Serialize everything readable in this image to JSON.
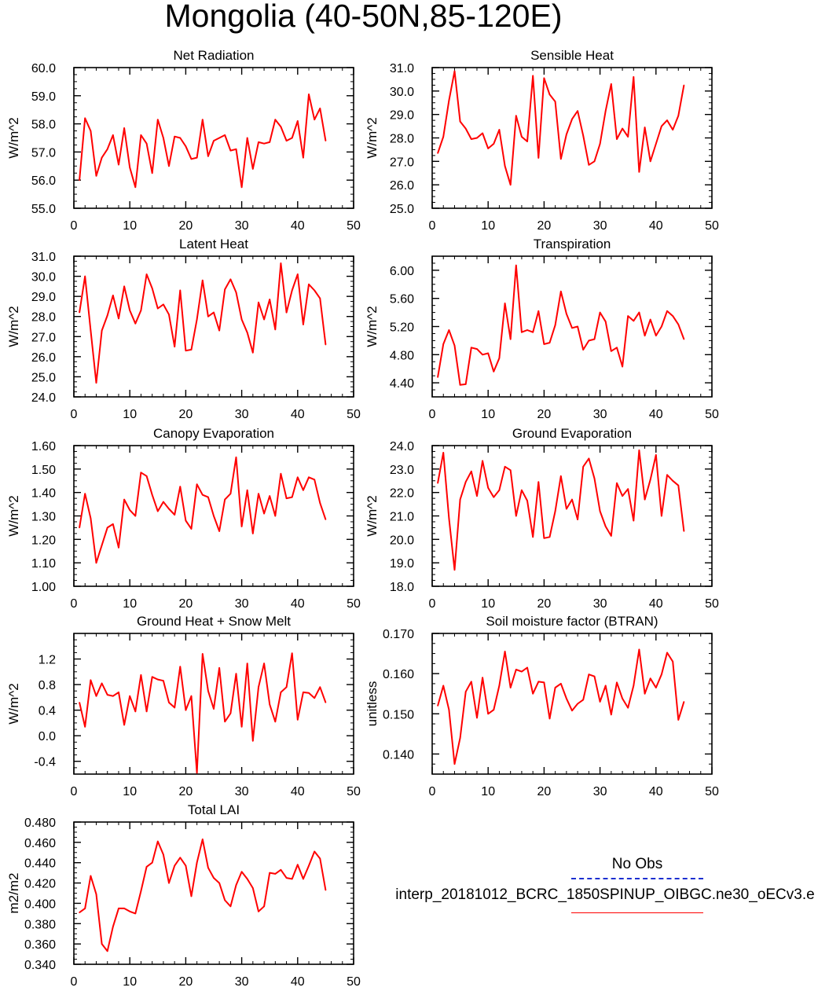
{
  "title": "Mongolia (40-50N,85-120E)",
  "legend": {
    "obs_label": "No Obs",
    "run_label": "interp_20181012_BCRC_1850SPINUP_OIBGC.ne30_oECv3.e",
    "obs_color": "#1c2fd0",
    "run_color": "#ff0000"
  },
  "chart_data": [
    {
      "type": "line",
      "title": "Net Radiation",
      "ylabel": "W/m^2",
      "xlim": [
        0,
        50
      ],
      "xticks": [
        "0",
        "10",
        "20",
        "30",
        "40",
        "50"
      ],
      "ylim": [
        55,
        60
      ],
      "yticks": [
        "55.0",
        "56.0",
        "57.0",
        "58.0",
        "59.0",
        "60.0"
      ],
      "x": [
        1,
        2,
        3,
        4,
        5,
        6,
        7,
        8,
        9,
        10,
        11,
        12,
        13,
        14,
        15,
        16,
        17,
        18,
        19,
        20,
        21,
        22,
        23,
        24,
        25,
        26,
        27,
        28,
        29,
        30,
        31,
        32,
        33,
        34,
        35,
        36,
        37,
        38,
        39,
        40,
        41,
        42,
        43,
        44,
        45
      ],
      "values": [
        56.0,
        58.2,
        57.75,
        56.15,
        56.8,
        57.1,
        57.6,
        56.55,
        57.85,
        56.45,
        55.75,
        57.6,
        57.3,
        56.25,
        58.15,
        57.5,
        56.5,
        57.55,
        57.5,
        57.2,
        56.75,
        56.8,
        58.15,
        56.85,
        57.4,
        57.5,
        57.6,
        57.05,
        57.1,
        55.75,
        57.5,
        56.4,
        57.35,
        57.3,
        57.35,
        58.15,
        57.9,
        57.4,
        57.5,
        58.1,
        56.8,
        59.05,
        58.15,
        58.55,
        57.4
      ]
    },
    {
      "type": "line",
      "title": "Sensible Heat",
      "ylabel": "W/m^2",
      "xlim": [
        0,
        50
      ],
      "xticks": [
        "0",
        "10",
        "20",
        "30",
        "40",
        "50"
      ],
      "ylim": [
        25,
        31
      ],
      "yticks": [
        "25.0",
        "26.0",
        "27.0",
        "28.0",
        "29.0",
        "30.0",
        "31.0"
      ],
      "x": [
        1,
        2,
        3,
        4,
        5,
        6,
        7,
        8,
        9,
        10,
        11,
        12,
        13,
        14,
        15,
        16,
        17,
        18,
        19,
        20,
        21,
        22,
        23,
        24,
        25,
        26,
        27,
        28,
        29,
        30,
        31,
        32,
        33,
        34,
        35,
        36,
        37,
        38,
        39,
        40,
        41,
        42,
        43,
        44,
        45
      ],
      "values": [
        27.35,
        28.05,
        29.6,
        30.85,
        28.7,
        28.4,
        27.95,
        28.0,
        28.2,
        27.55,
        27.75,
        28.35,
        26.8,
        26.0,
        28.95,
        28.05,
        27.85,
        30.65,
        27.15,
        30.55,
        29.85,
        29.55,
        27.1,
        28.15,
        28.8,
        29.15,
        28.1,
        26.85,
        27.0,
        27.75,
        29.15,
        30.3,
        27.95,
        28.4,
        28.05,
        30.6,
        26.55,
        28.45,
        27.0,
        27.75,
        28.5,
        28.75,
        28.35,
        28.95,
        30.25
      ]
    },
    {
      "type": "line",
      "title": "Latent Heat",
      "ylabel": "W/m^2",
      "xlim": [
        0,
        50
      ],
      "xticks": [
        "0",
        "10",
        "20",
        "30",
        "40",
        "50"
      ],
      "ylim": [
        24,
        31
      ],
      "yticks": [
        "24.0",
        "25.0",
        "26.0",
        "27.0",
        "28.0",
        "29.0",
        "30.0",
        "31.0"
      ],
      "x": [
        1,
        2,
        3,
        4,
        5,
        6,
        7,
        8,
        9,
        10,
        11,
        12,
        13,
        14,
        15,
        16,
        17,
        18,
        19,
        20,
        21,
        22,
        23,
        24,
        25,
        26,
        27,
        28,
        29,
        30,
        31,
        32,
        33,
        34,
        35,
        36,
        37,
        38,
        39,
        40,
        41,
        42,
        43,
        44,
        45
      ],
      "values": [
        28.2,
        30.0,
        27.3,
        24.7,
        27.3,
        28.05,
        29.05,
        27.9,
        29.5,
        28.3,
        27.65,
        28.3,
        30.1,
        29.4,
        28.4,
        28.6,
        28.1,
        26.5,
        29.3,
        26.3,
        26.35,
        27.85,
        29.8,
        28.0,
        28.2,
        27.3,
        29.35,
        29.85,
        29.2,
        27.85,
        27.2,
        26.2,
        28.7,
        27.85,
        28.85,
        27.35,
        30.65,
        28.2,
        29.3,
        30.1,
        27.6,
        29.6,
        29.3,
        28.9,
        26.6
      ]
    },
    {
      "type": "line",
      "title": "Transpiration",
      "ylabel": "W/m^2",
      "xlim": [
        0,
        50
      ],
      "xticks": [
        "0",
        "10",
        "20",
        "30",
        "40",
        "50"
      ],
      "ylim": [
        4.2,
        6.2
      ],
      "yticks": [
        "4.40",
        "4.80",
        "5.20",
        "5.60",
        "6.00"
      ],
      "x": [
        1,
        2,
        3,
        4,
        5,
        6,
        7,
        8,
        9,
        10,
        11,
        12,
        13,
        14,
        15,
        16,
        17,
        18,
        19,
        20,
        21,
        22,
        23,
        24,
        25,
        26,
        27,
        28,
        29,
        30,
        31,
        32,
        33,
        34,
        35,
        36,
        37,
        38,
        39,
        40,
        41,
        42,
        43,
        44,
        45
      ],
      "values": [
        4.48,
        4.95,
        5.15,
        4.93,
        4.37,
        4.38,
        4.9,
        4.88,
        4.8,
        4.82,
        4.56,
        4.75,
        5.53,
        5.02,
        6.07,
        5.12,
        5.15,
        5.12,
        5.42,
        4.95,
        4.97,
        5.22,
        5.7,
        5.38,
        5.18,
        5.2,
        4.87,
        5.0,
        5.02,
        5.4,
        5.27,
        4.85,
        4.9,
        4.63,
        5.35,
        5.28,
        5.4,
        5.07,
        5.3,
        5.07,
        5.2,
        5.42,
        5.35,
        5.23,
        5.02
      ]
    },
    {
      "type": "line",
      "title": "Canopy Evaporation",
      "ylabel": "W/m^2",
      "xlim": [
        0,
        50
      ],
      "xticks": [
        "0",
        "10",
        "20",
        "30",
        "40",
        "50"
      ],
      "ylim": [
        1.0,
        1.6
      ],
      "yticks": [
        "1.00",
        "1.10",
        "1.20",
        "1.30",
        "1.40",
        "1.50",
        "1.60"
      ],
      "x": [
        1,
        2,
        3,
        4,
        5,
        6,
        7,
        8,
        9,
        10,
        11,
        12,
        13,
        14,
        15,
        16,
        17,
        18,
        19,
        20,
        21,
        22,
        23,
        24,
        25,
        26,
        27,
        28,
        29,
        30,
        31,
        32,
        33,
        34,
        35,
        36,
        37,
        38,
        39,
        40,
        41,
        42,
        43,
        44,
        45
      ],
      "values": [
        1.25,
        1.395,
        1.29,
        1.1,
        1.175,
        1.25,
        1.265,
        1.165,
        1.37,
        1.325,
        1.3,
        1.485,
        1.47,
        1.39,
        1.32,
        1.36,
        1.33,
        1.305,
        1.425,
        1.28,
        1.245,
        1.435,
        1.39,
        1.38,
        1.3,
        1.235,
        1.37,
        1.395,
        1.55,
        1.255,
        1.41,
        1.225,
        1.395,
        1.31,
        1.385,
        1.3,
        1.48,
        1.375,
        1.38,
        1.465,
        1.41,
        1.465,
        1.455,
        1.355,
        1.285
      ]
    },
    {
      "type": "line",
      "title": "Ground Evaporation",
      "ylabel": "W/m^2",
      "xlim": [
        0,
        50
      ],
      "xticks": [
        "0",
        "10",
        "20",
        "30",
        "40",
        "50"
      ],
      "ylim": [
        18,
        24
      ],
      "yticks": [
        "18.0",
        "19.0",
        "20.0",
        "21.0",
        "22.0",
        "23.0",
        "24.0"
      ],
      "x": [
        1,
        2,
        3,
        4,
        5,
        6,
        7,
        8,
        9,
        10,
        11,
        12,
        13,
        14,
        15,
        16,
        17,
        18,
        19,
        20,
        21,
        22,
        23,
        24,
        25,
        26,
        27,
        28,
        29,
        30,
        31,
        32,
        33,
        34,
        35,
        36,
        37,
        38,
        39,
        40,
        41,
        42,
        43,
        44,
        45
      ],
      "values": [
        22.4,
        23.7,
        20.9,
        18.7,
        21.7,
        22.45,
        22.9,
        21.85,
        23.35,
        22.2,
        21.8,
        22.1,
        23.1,
        22.95,
        21.0,
        22.1,
        21.65,
        20.1,
        22.45,
        20.05,
        20.1,
        21.2,
        22.7,
        21.3,
        21.7,
        20.85,
        23.1,
        23.45,
        22.6,
        21.2,
        20.55,
        20.15,
        22.4,
        21.85,
        22.15,
        20.8,
        23.8,
        21.7,
        22.55,
        23.6,
        21.0,
        22.75,
        22.5,
        22.3,
        20.35
      ]
    },
    {
      "type": "line",
      "title": "Ground Heat + Snow Melt",
      "ylabel": "W/m^2",
      "xlim": [
        0,
        50
      ],
      "xticks": [
        "0",
        "10",
        "20",
        "30",
        "40",
        "50"
      ],
      "ylim": [
        -0.6,
        1.6
      ],
      "yticks": [
        "-0.4",
        "0.0",
        "0.4",
        "0.8",
        "1.2"
      ],
      "x": [
        1,
        2,
        3,
        4,
        5,
        6,
        7,
        8,
        9,
        10,
        11,
        12,
        13,
        14,
        15,
        16,
        17,
        18,
        19,
        20,
        21,
        22,
        23,
        24,
        25,
        26,
        27,
        28,
        29,
        30,
        31,
        32,
        33,
        34,
        35,
        36,
        37,
        38,
        39,
        40,
        41,
        42,
        43,
        44,
        45
      ],
      "values": [
        0.52,
        0.14,
        0.87,
        0.62,
        0.82,
        0.64,
        0.62,
        0.68,
        0.17,
        0.62,
        0.38,
        0.95,
        0.38,
        0.92,
        0.88,
        0.86,
        0.52,
        0.44,
        1.08,
        0.4,
        0.62,
        -0.58,
        1.28,
        0.7,
        0.42,
        1.06,
        0.22,
        0.35,
        0.97,
        0.14,
        1.13,
        -0.08,
        0.76,
        1.13,
        0.49,
        0.22,
        0.68,
        0.76,
        1.29,
        0.25,
        0.68,
        0.67,
        0.59,
        0.76,
        0.52
      ]
    },
    {
      "type": "line",
      "title": "Soil moisture factor (BTRAN)",
      "ylabel": "unitless",
      "xlim": [
        0,
        50
      ],
      "xticks": [
        "0",
        "10",
        "20",
        "30",
        "40",
        "50"
      ],
      "ylim": [
        0.135,
        0.17
      ],
      "yticks": [
        "0.140",
        "0.150",
        "0.160",
        "0.170"
      ],
      "x": [
        1,
        2,
        3,
        4,
        5,
        6,
        7,
        8,
        9,
        10,
        11,
        12,
        13,
        14,
        15,
        16,
        17,
        18,
        19,
        20,
        21,
        22,
        23,
        24,
        25,
        26,
        27,
        28,
        29,
        30,
        31,
        32,
        33,
        34,
        35,
        36,
        37,
        38,
        39,
        40,
        41,
        42,
        43,
        44,
        45
      ],
      "values": [
        0.152,
        0.157,
        0.151,
        0.1375,
        0.144,
        0.1555,
        0.158,
        0.149,
        0.159,
        0.15,
        0.151,
        0.157,
        0.1655,
        0.1565,
        0.161,
        0.1605,
        0.1615,
        0.155,
        0.158,
        0.1578,
        0.1488,
        0.1565,
        0.1575,
        0.1538,
        0.1508,
        0.1525,
        0.1535,
        0.1598,
        0.1593,
        0.153,
        0.157,
        0.1498,
        0.1578,
        0.1538,
        0.1515,
        0.157,
        0.166,
        0.155,
        0.1588,
        0.1565,
        0.1598,
        0.1652,
        0.163,
        0.1485,
        0.153
      ]
    },
    {
      "type": "line",
      "title": "Total LAI",
      "ylabel": "m2/m2",
      "xlim": [
        0,
        50
      ],
      "xticks": [
        "0",
        "10",
        "20",
        "30",
        "40",
        "50"
      ],
      "ylim": [
        0.34,
        0.48
      ],
      "yticks": [
        "0.340",
        "0.360",
        "0.380",
        "0.400",
        "0.420",
        "0.440",
        "0.460",
        "0.480"
      ],
      "x": [
        1,
        2,
        3,
        4,
        5,
        6,
        7,
        8,
        9,
        10,
        11,
        12,
        13,
        14,
        15,
        16,
        17,
        18,
        19,
        20,
        21,
        22,
        23,
        24,
        25,
        26,
        27,
        28,
        29,
        30,
        31,
        32,
        33,
        34,
        35,
        36,
        37,
        38,
        39,
        40,
        41,
        42,
        43,
        44,
        45
      ],
      "values": [
        0.391,
        0.395,
        0.427,
        0.409,
        0.36,
        0.353,
        0.377,
        0.395,
        0.395,
        0.392,
        0.39,
        0.412,
        0.436,
        0.44,
        0.461,
        0.448,
        0.42,
        0.437,
        0.445,
        0.437,
        0.407,
        0.44,
        0.463,
        0.435,
        0.425,
        0.42,
        0.403,
        0.397,
        0.418,
        0.431,
        0.424,
        0.415,
        0.392,
        0.397,
        0.43,
        0.429,
        0.433,
        0.425,
        0.424,
        0.438,
        0.424,
        0.437,
        0.451,
        0.444,
        0.413
      ]
    }
  ]
}
